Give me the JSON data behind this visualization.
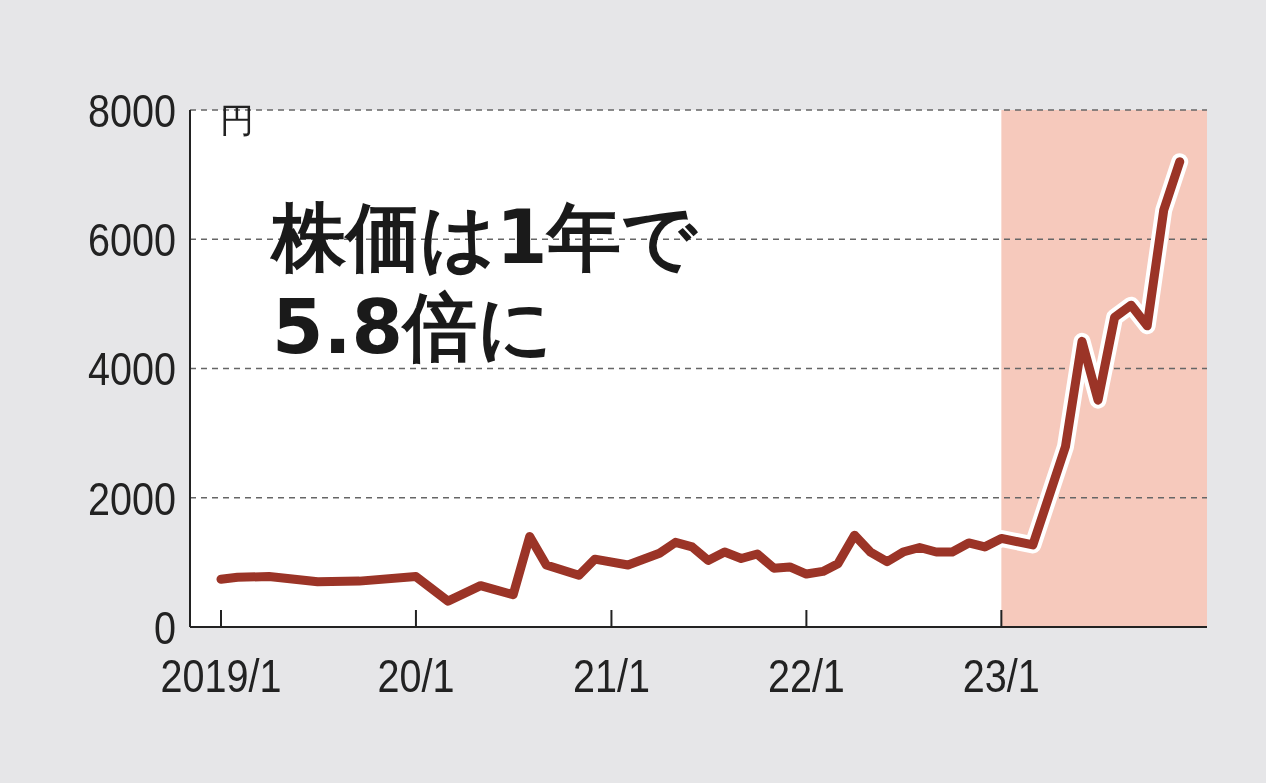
{
  "chart_data": {
    "type": "line",
    "ylabel": "円",
    "annotations": [
      "株価は1年で5.8倍に"
    ],
    "x": [
      "2019-01",
      "2019-02",
      "2019-04",
      "2019-07",
      "2019-09-17",
      "2020-01",
      "2020-03",
      "2020-05",
      "2020-07",
      "2020-08",
      "2020-09",
      "2020-11",
      "2020-12",
      "2021-02",
      "2021-04",
      "2021-05",
      "2021-06",
      "2021-07",
      "2021-08",
      "2021-09",
      "2021-10",
      "2021-11",
      "2021-12",
      "2022-01",
      "2022-02",
      "2022-03",
      "2022-04",
      "2022-05",
      "2022-06",
      "2022-07",
      "2022-08",
      "2022-09",
      "2022-10",
      "2022-11",
      "2022-12",
      "2023-01",
      "2023-03",
      "2023-05",
      "2023-06",
      "2023-07",
      "2023-08",
      "2023-09",
      "2023-10",
      "2023-11",
      "2023-12"
    ],
    "series": [
      {
        "color": "#9b3427",
        "values": [
          740,
          770,
          780,
          700,
          710,
          780,
          400,
          640,
          500,
          1400,
          960,
          800,
          1050,
          960,
          1140,
          1310,
          1240,
          1030,
          1160,
          1060,
          1130,
          910,
          930,
          820,
          860,
          980,
          1420,
          1160,
          1010,
          1160,
          1230,
          1160,
          1160,
          1300,
          1240,
          1370,
          1270,
          2790,
          4420,
          3510,
          4790,
          4980,
          4660,
          6450,
          7200
        ]
      }
    ],
    "xlim": [
      "2018-11-04",
      "2024-01-21"
    ],
    "ylim": [
      0,
      8000
    ],
    "xticks": [
      {
        "value": "2019-01",
        "label": "2019/1"
      },
      {
        "value": "2020-01",
        "label": "20/1"
      },
      {
        "value": "2021-01",
        "label": "21/1"
      },
      {
        "value": "2022-01",
        "label": "22/1"
      },
      {
        "value": "2023-01",
        "label": "23/1"
      }
    ],
    "yticks": [
      0,
      2000,
      4000,
      6000,
      8000
    ],
    "grid": "y",
    "marker": "none",
    "line_style": "solid",
    "bands": [
      {
        "axis": "x",
        "from": "2023-01",
        "to": "2024-01-21",
        "color": "#f6c9bc"
      }
    ]
  }
}
